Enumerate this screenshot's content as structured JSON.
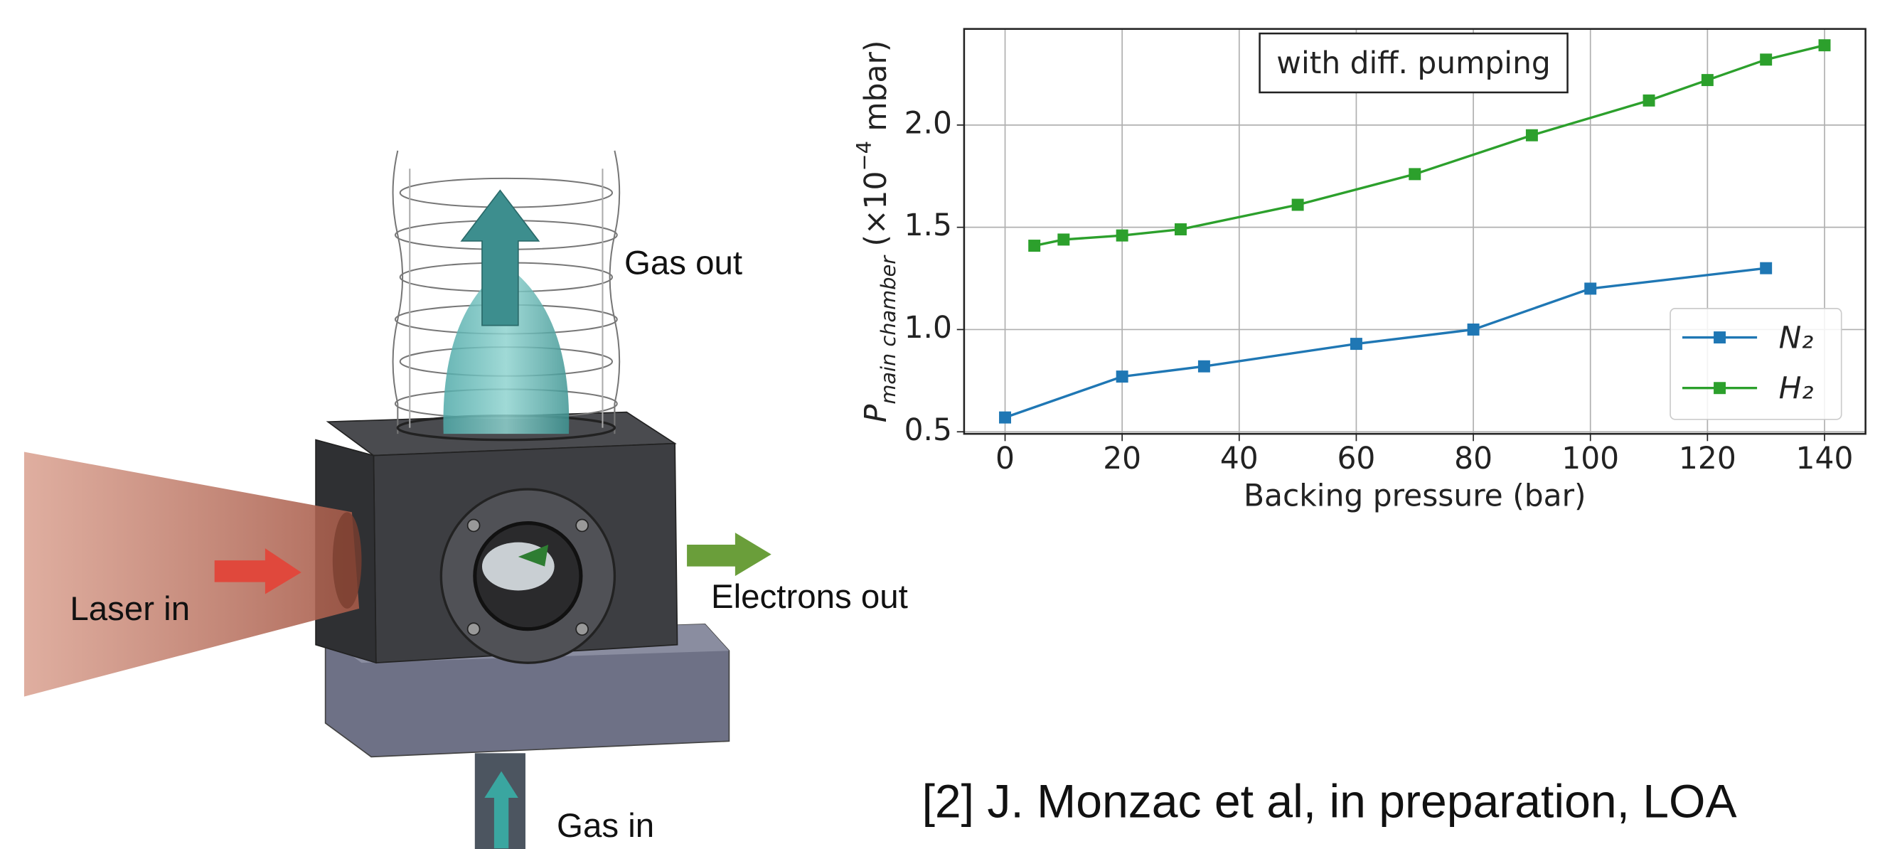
{
  "diagram": {
    "labels": [
      "Gas out",
      "Laser in",
      "Electrons out",
      "Gas in"
    ]
  },
  "citation": "[2] J. Monzac et al, in preparation, LOA",
  "chart_data": {
    "type": "line",
    "annotation": "with diff. pumping",
    "xlabel": "Backing pressure (bar)",
    "ylabel": {
      "symbol": "P",
      "subscript": "main chamber",
      "unit_start": " (×10",
      "exponent": "−4",
      "unit_end": " mbar)"
    },
    "series": [
      {
        "name": "N₂",
        "color": "#1f77b4",
        "x": [
          0,
          20,
          34,
          60,
          80,
          100,
          130
        ],
        "values": [
          0.57,
          0.77,
          0.82,
          0.93,
          1.0,
          1.2,
          1.3
        ]
      },
      {
        "name": "H₂",
        "color": "#2ca02c",
        "x": [
          5,
          10,
          20,
          30,
          50,
          70,
          90,
          110,
          120,
          130,
          140
        ],
        "values": [
          1.41,
          1.44,
          1.46,
          1.49,
          1.61,
          1.76,
          1.95,
          2.12,
          2.22,
          2.32,
          2.39
        ]
      }
    ],
    "xlim": [
      -7,
      147
    ],
    "ylim": [
      0.49,
      2.47
    ],
    "xticks": [
      0,
      20,
      40,
      60,
      80,
      100,
      120,
      140
    ],
    "yticks": [
      0.5,
      {
        "value": 1,
        "label": "1.0"
      },
      1.5,
      {
        "value": 2,
        "label": "2.0"
      }
    ],
    "grid": true,
    "legend": "lower right",
    "marker": "square"
  }
}
